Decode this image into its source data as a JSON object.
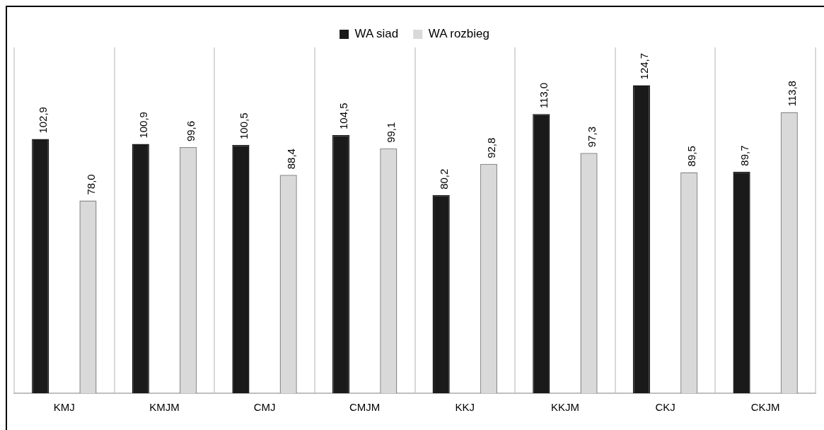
{
  "chart_data": {
    "type": "bar",
    "categories": [
      "KMJ",
      "KMJM",
      "CMJ",
      "CMJM",
      "KKJ",
      "KKJM",
      "CKJ",
      "CKJM"
    ],
    "series": [
      {
        "name": "WA siad",
        "color": "#1a1a1a",
        "values": [
          102.9,
          100.9,
          100.5,
          104.5,
          80.2,
          113.0,
          124.7,
          89.7
        ],
        "value_labels": [
          "102,9",
          "100,9",
          "100,5",
          "104,5",
          "80,2",
          "113,0",
          "124,7",
          "89,7"
        ]
      },
      {
        "name": "WA rozbieg",
        "color": "#d9d9d9",
        "values": [
          78.0,
          99.6,
          88.4,
          99.1,
          92.8,
          97.3,
          89.5,
          113.8
        ],
        "value_labels": [
          "78,0",
          "99,6",
          "88,4",
          "99,1",
          "92,8",
          "97,3",
          "89,5",
          "113,8"
        ]
      }
    ],
    "grid": "x",
    "legend": "top"
  }
}
